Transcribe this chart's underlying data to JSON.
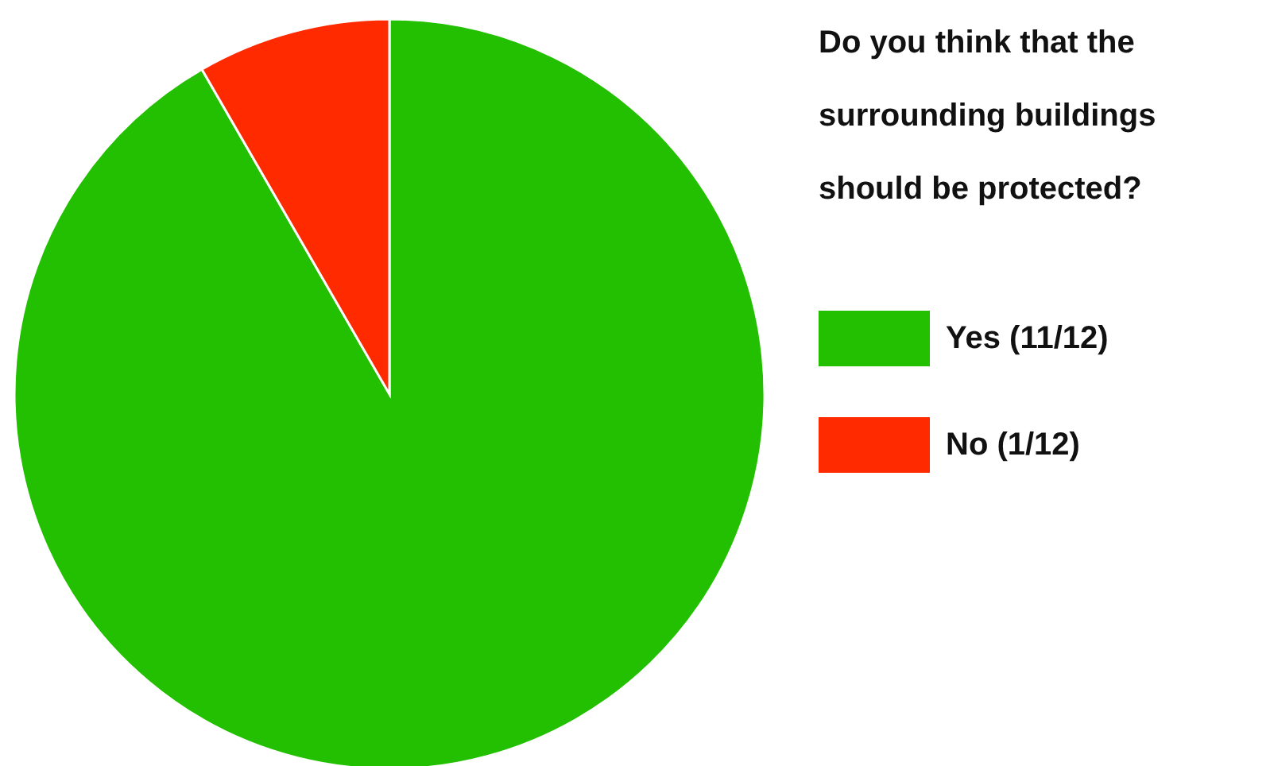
{
  "chart_data": {
    "type": "pie",
    "title": "Do you think that the surrounding buildings should be protected?",
    "categories": [
      "Yes (11/12)",
      "No (1/12)"
    ],
    "values": [
      11,
      1
    ],
    "colors": [
      "#22c000",
      "#ff2a00"
    ],
    "legend": "right"
  }
}
